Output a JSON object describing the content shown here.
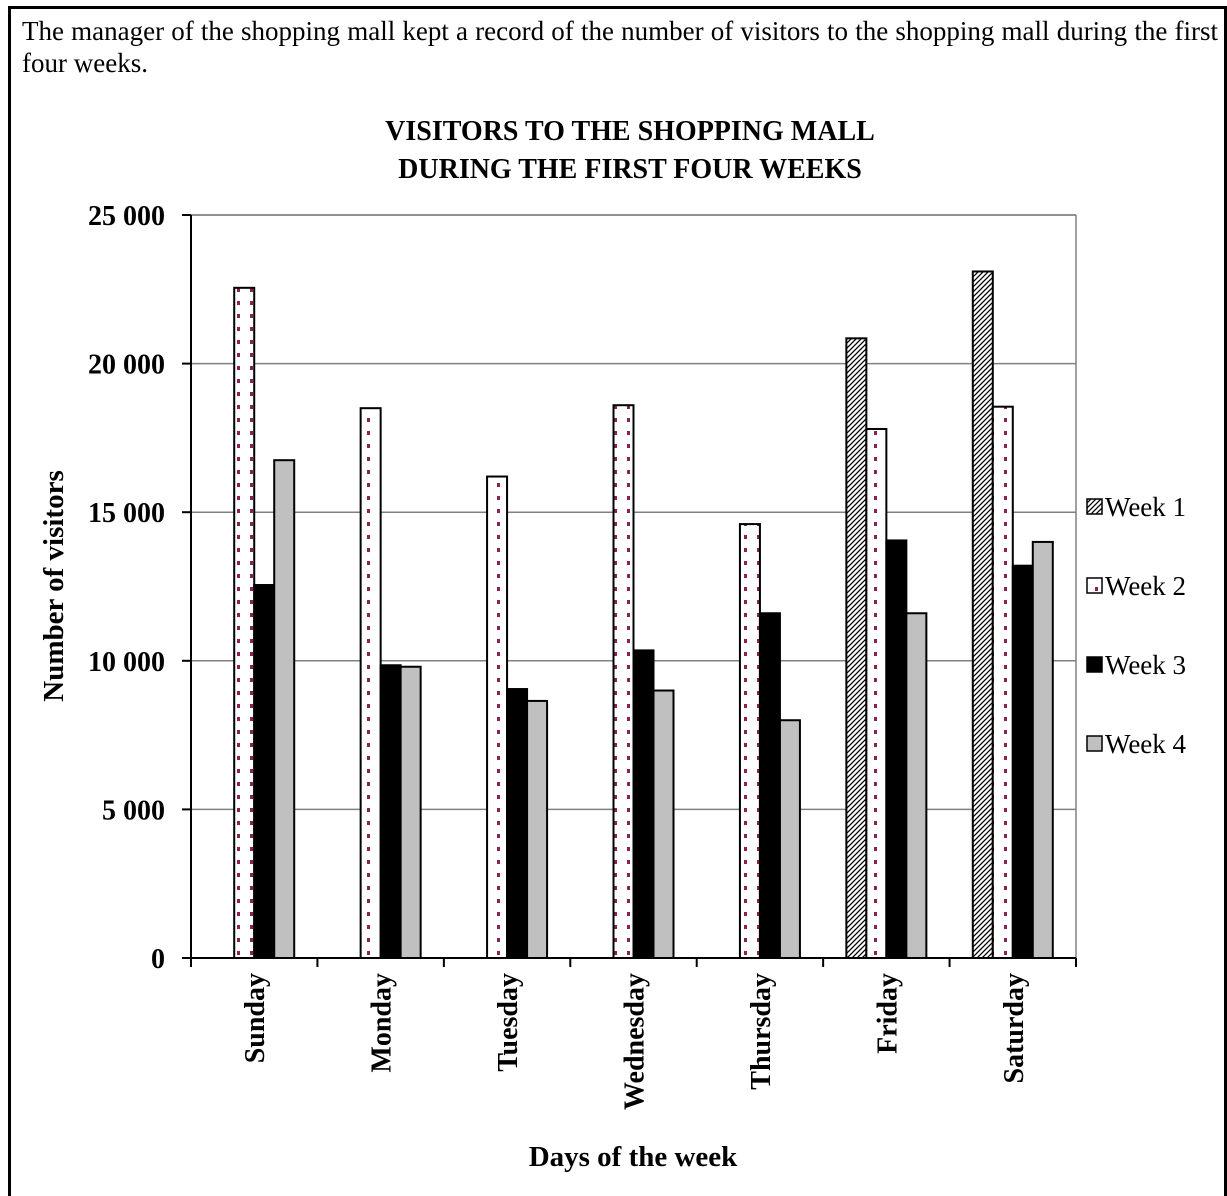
{
  "intro_text": "The manager of the shopping mall kept a record of the number of visitors to the shopping mall during the first four weeks.",
  "chart_data": {
    "type": "bar",
    "title_lines": [
      "VISITORS TO THE SHOPPING MALL",
      "DURING THE FIRST FOUR WEEKS"
    ],
    "xlabel": "Days of the week",
    "ylabel": "Number of visitors",
    "categories": [
      "Sunday",
      "Monday",
      "Tuesday",
      "Wednesday",
      "Thursday",
      "Friday",
      "Saturday"
    ],
    "ylim": [
      0,
      25000
    ],
    "yticks": [
      0,
      5000,
      10000,
      15000,
      20000,
      25000
    ],
    "ytick_labels": [
      "0",
      "5 000",
      "10 000",
      "15 000",
      "20 000",
      "25 000"
    ],
    "grid": true,
    "legend_position": "right",
    "series": [
      {
        "name": "Week 1",
        "pattern": "diagonal-hatch",
        "values": [
          null,
          null,
          null,
          null,
          null,
          20850,
          23100
        ]
      },
      {
        "name": "Week 2",
        "pattern": "dotted-white",
        "values": [
          22550,
          18500,
          16200,
          18600,
          14600,
          17800,
          18550
        ]
      },
      {
        "name": "Week 3",
        "pattern": "solid-black",
        "values": [
          12550,
          9850,
          9050,
          10350,
          11600,
          14050,
          13200
        ]
      },
      {
        "name": "Week 4",
        "pattern": "solid-grey",
        "values": [
          16750,
          9800,
          8650,
          9000,
          8000,
          11600,
          14000
        ]
      }
    ],
    "colors": {
      "week2_dot": "#8b2252",
      "week4_fill": "#c0c0c0",
      "week3_fill": "#000000",
      "gridline": "#808080"
    }
  }
}
